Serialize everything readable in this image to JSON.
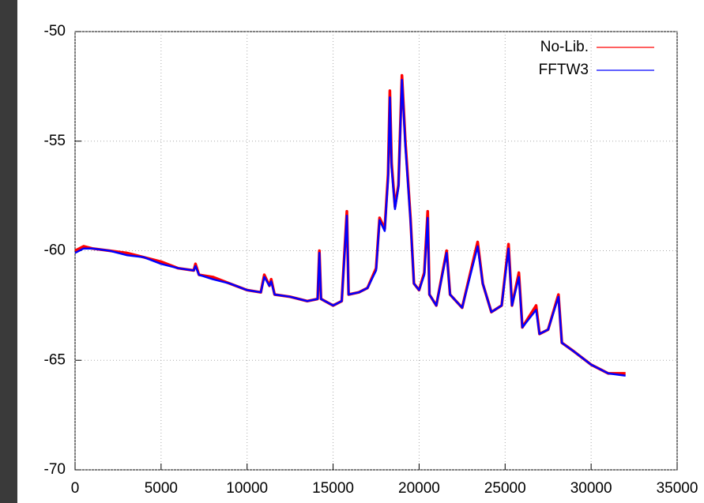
{
  "chart_data": {
    "type": "line",
    "x": [
      0,
      500,
      1000,
      2000,
      3000,
      4000,
      5000,
      6000,
      6900,
      7000,
      7200,
      8000,
      9000,
      10000,
      10800,
      11000,
      11300,
      11400,
      11600,
      12500,
      13500,
      14100,
      14200,
      14300,
      15000,
      15500,
      15800,
      15900,
      16500,
      17000,
      17500,
      17700,
      18000,
      18200,
      18300,
      18400,
      18600,
      18800,
      19000,
      19200,
      19500,
      19700,
      20000,
      20300,
      20500,
      20600,
      21000,
      21600,
      21800,
      22500,
      23400,
      23700,
      24200,
      24800,
      25200,
      25400,
      25800,
      26000,
      26800,
      27000,
      27500,
      28100,
      28300,
      29000,
      30000,
      31000,
      32000
    ],
    "series": [
      {
        "name": "No-Lib.",
        "color": "#ff0000",
        "values": [
          -60.0,
          -59.8,
          -59.9,
          -60.0,
          -60.1,
          -60.3,
          -60.5,
          -60.8,
          -60.9,
          -60.6,
          -61.1,
          -61.2,
          -61.5,
          -61.8,
          -61.9,
          -61.1,
          -61.6,
          -61.3,
          -62.0,
          -62.1,
          -62.3,
          -62.2,
          -60.0,
          -62.2,
          -62.5,
          -62.3,
          -58.2,
          -62.0,
          -61.9,
          -61.7,
          -60.8,
          -58.5,
          -59.0,
          -56.5,
          -52.7,
          -56.0,
          -58.0,
          -57.0,
          -52.0,
          -55.0,
          -58.5,
          -61.5,
          -61.8,
          -61.0,
          -58.2,
          -62.0,
          -62.5,
          -60.0,
          -62.0,
          -62.6,
          -59.6,
          -61.5,
          -62.8,
          -62.5,
          -59.7,
          -62.5,
          -61.0,
          -63.5,
          -62.5,
          -63.8,
          -63.6,
          -62.0,
          -64.2,
          -64.6,
          -65.2,
          -65.6,
          -65.6
        ]
      },
      {
        "name": "FFTW3",
        "color": "#0000ff",
        "values": [
          -60.1,
          -59.9,
          -59.9,
          -60.0,
          -60.2,
          -60.3,
          -60.6,
          -60.8,
          -60.9,
          -60.7,
          -61.1,
          -61.3,
          -61.5,
          -61.8,
          -61.9,
          -61.2,
          -61.6,
          -61.4,
          -62.0,
          -62.1,
          -62.3,
          -62.2,
          -60.1,
          -62.2,
          -62.5,
          -62.3,
          -58.4,
          -62.0,
          -61.9,
          -61.7,
          -60.9,
          -58.6,
          -59.1,
          -56.7,
          -53.0,
          -56.2,
          -58.1,
          -57.1,
          -52.2,
          -55.2,
          -58.6,
          -61.5,
          -61.8,
          -61.1,
          -58.5,
          -62.0,
          -62.5,
          -60.1,
          -62.0,
          -62.6,
          -59.8,
          -61.5,
          -62.8,
          -62.5,
          -59.9,
          -62.5,
          -61.2,
          -63.5,
          -62.7,
          -63.8,
          -63.6,
          -62.1,
          -64.2,
          -64.6,
          -65.2,
          -65.6,
          -65.7
        ]
      }
    ],
    "xlim": [
      0,
      35000
    ],
    "xticks": [
      0,
      5000,
      10000,
      15000,
      20000,
      25000,
      30000,
      35000
    ],
    "ylim": [
      -70,
      -50
    ],
    "yticks": [
      -70,
      -65,
      -60,
      -55,
      -50
    ],
    "grid": true,
    "legend": "top-right"
  }
}
